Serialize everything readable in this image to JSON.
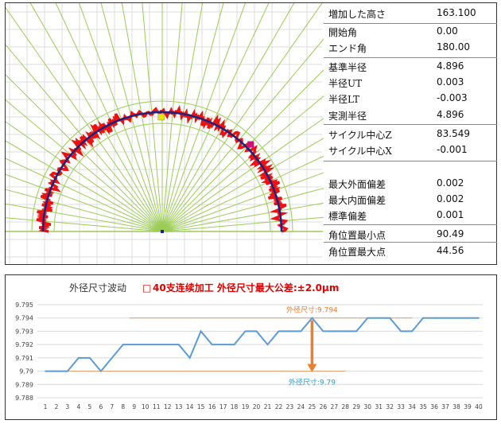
{
  "params": [
    {
      "label": "増加した高さ",
      "value": "163.100"
    },
    {
      "label": "開始角",
      "value": "0.00"
    },
    {
      "label": "エンド角",
      "value": "180.00"
    },
    {
      "label": "基準半径",
      "value": "4.896"
    },
    {
      "label": "半径UT",
      "value": "0.003"
    },
    {
      "label": "半径LT",
      "value": "-0.003"
    },
    {
      "label": "実測半径",
      "value": "4.896"
    },
    {
      "label": "サイクル中心Z",
      "value": "83.549"
    },
    {
      "label": "サイクル中心X",
      "value": "-0.001"
    },
    {
      "label": "最大外面偏差",
      "value": "0.002"
    },
    {
      "label": "最大内面偏差",
      "value": "0.002"
    },
    {
      "label": "標準偏差",
      "value": "0.001"
    },
    {
      "label": "角位置最小点",
      "value": "90.49"
    },
    {
      "label": "角位置最大点",
      "value": "44.56"
    }
  ],
  "colors": {
    "grid_green": "#9ccc55",
    "arc_red": "#ee1111",
    "arc_blue": "#1a237e",
    "line_blue": "#5b9bd5",
    "annot_orange": "#ed7d31",
    "min_label": "#2e9bd6",
    "title_red": "#e00000"
  },
  "chart_data": {
    "type": "line",
    "title": "外径尺寸波动",
    "subtitle_marker": "□",
    "subtitle": "40支连续加工 外径尺寸最大公差:±2.0μm",
    "x": [
      1,
      2,
      3,
      4,
      5,
      6,
      7,
      8,
      9,
      10,
      11,
      12,
      13,
      14,
      15,
      16,
      17,
      18,
      19,
      20,
      21,
      22,
      23,
      24,
      25,
      26,
      27,
      28,
      29,
      30,
      31,
      32,
      33,
      34,
      35,
      36,
      37,
      38,
      39,
      40
    ],
    "series": [
      {
        "values": [
          9.79,
          9.79,
          9.79,
          9.791,
          9.791,
          9.79,
          9.791,
          9.792,
          9.792,
          9.792,
          9.792,
          9.792,
          9.792,
          9.791,
          9.793,
          9.792,
          9.792,
          9.792,
          9.793,
          9.793,
          9.792,
          9.793,
          9.793,
          9.793,
          9.794,
          9.793,
          9.793,
          9.793,
          9.793,
          9.794,
          9.794,
          9.794,
          9.793,
          9.793,
          9.794,
          9.794,
          9.794,
          9.794,
          9.794,
          9.794
        ]
      }
    ],
    "yticks": [
      "9.795",
      "9.794",
      "9.793",
      "9.792",
      "9.791",
      "9.79",
      "9.789",
      "9.788"
    ],
    "ylim": [
      9.788,
      9.795
    ],
    "max_label": "外径尺寸:9.794",
    "min_label": "外径尺寸:9.79",
    "max_value": 9.794,
    "min_value": 9.79,
    "grid": "horizontal"
  }
}
